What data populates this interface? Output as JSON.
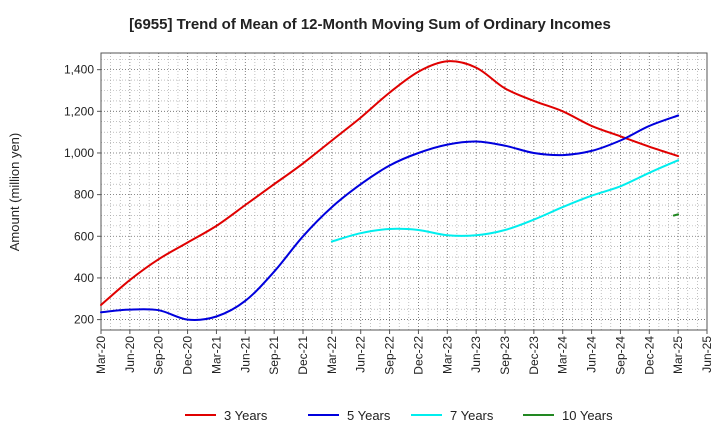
{
  "chart_data": {
    "type": "line",
    "title": "[6955]  Trend of Mean of 12-Month Moving Sum of Ordinary Incomes",
    "ylabel": "Amount (million yen)",
    "xlabel": "",
    "ylim": [
      150,
      1480
    ],
    "yticks": [
      200,
      400,
      600,
      800,
      1000,
      1200,
      1400
    ],
    "ytick_labels": [
      "200",
      "400",
      "600",
      "800",
      "1,000",
      "1,200",
      "1,400"
    ],
    "xtick_labels": [
      "Mar-20",
      "Jun-20",
      "Sep-20",
      "Dec-20",
      "Mar-21",
      "Jun-21",
      "Sep-21",
      "Dec-21",
      "Mar-22",
      "Jun-22",
      "Sep-22",
      "Dec-22",
      "Mar-23",
      "Jun-23",
      "Sep-23",
      "Dec-23",
      "Mar-24",
      "Jun-24",
      "Sep-24",
      "Dec-24",
      "Mar-25",
      "Jun-25"
    ],
    "x_index_range": [
      0,
      21
    ],
    "grid": true,
    "legend_position": "bottom",
    "series": [
      {
        "name": "3 Years",
        "color": "#e00000",
        "x": [
          0,
          1,
          2,
          3,
          4,
          5,
          6,
          7,
          8,
          9,
          10,
          11,
          12,
          13,
          14,
          15,
          16,
          17,
          18,
          19,
          20
        ],
        "values": [
          270,
          390,
          490,
          570,
          650,
          750,
          850,
          950,
          1060,
          1170,
          1290,
          1390,
          1440,
          1410,
          1310,
          1250,
          1200,
          1130,
          1080,
          1030,
          985
        ]
      },
      {
        "name": "5 Years",
        "color": "#0000dd",
        "x": [
          0,
          1,
          2,
          3,
          4,
          5,
          6,
          7,
          8,
          9,
          10,
          11,
          12,
          13,
          14,
          15,
          16,
          17,
          18,
          19,
          20
        ],
        "values": [
          235,
          248,
          245,
          200,
          215,
          290,
          430,
          600,
          740,
          850,
          940,
          1000,
          1040,
          1055,
          1035,
          1000,
          990,
          1010,
          1060,
          1130,
          1180
        ]
      },
      {
        "name": "7 Years",
        "color": "#00eeee",
        "x": [
          8,
          9,
          10,
          11,
          12,
          13,
          14,
          15,
          16,
          17,
          18,
          19,
          20
        ],
        "values": [
          575,
          615,
          635,
          630,
          605,
          605,
          630,
          680,
          740,
          795,
          840,
          905,
          965
        ]
      },
      {
        "name": "10 Years",
        "color": "#228822",
        "x": [
          19.85,
          20
        ],
        "values": [
          700,
          705
        ]
      }
    ]
  }
}
